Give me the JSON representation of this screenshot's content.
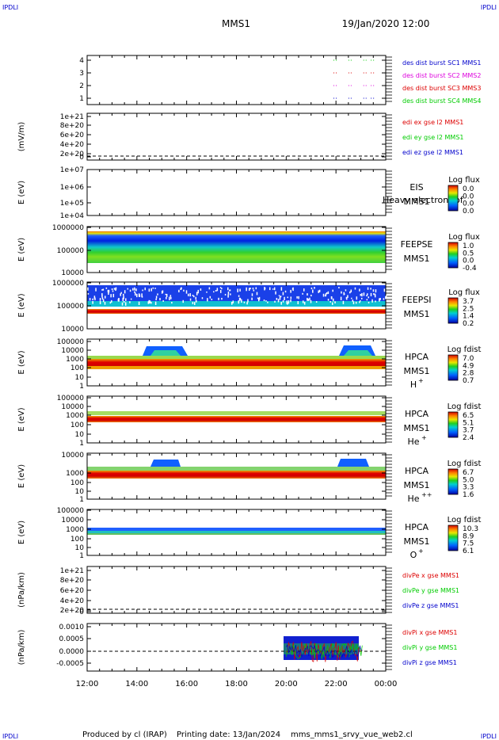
{
  "header": {
    "corner_tl": "IPDLI",
    "corner_tr": "IPDLI",
    "corner_bl": "IPDLI",
    "corner_br": "IPDLI",
    "spacecraft": "MMS1",
    "datetime": "19/Jan/2020 12:00"
  },
  "footer": {
    "produced_by": "Produced by cl (IRAP)",
    "printing_date": "Printing date: 13/Jan/2024",
    "filename": "mms_mms1_srvy_vue_web2.cl"
  },
  "colors": {
    "blue": "#0000cc",
    "magenta": "#dd00dd",
    "red": "#dd0000",
    "green": "#00cc00"
  },
  "chart_data": [
    {
      "type": "scatter",
      "id": "p1",
      "ticks": [
        "1",
        "2",
        "3",
        "4"
      ],
      "ylim": [
        0.5,
        4.5
      ],
      "legend": [
        {
          "label": "des dist burst SC1 MMS1",
          "color": "#0000cc"
        },
        {
          "label": "des dist burst SC2 MMS2",
          "color": "#dd00dd"
        },
        {
          "label": "des dist burst SC3 MMS3",
          "color": "#dd0000"
        },
        {
          "label": "des dist burst SC4 MMS4",
          "color": "#00cc00"
        }
      ],
      "events_hours": [
        21.9,
        22.5,
        23.1,
        23.4
      ]
    },
    {
      "type": "line",
      "id": "p2",
      "ylabel": "(mV/m)",
      "ticks": [
        "1e+21",
        "8e+20",
        "6e+20",
        "4e+20",
        "2e+20",
        "0"
      ],
      "legend": [
        {
          "label": "edi ex gse l2 MMS1",
          "color": "#dd0000"
        },
        {
          "label": "edi ey gse l2 MMS1",
          "color": "#00cc00"
        },
        {
          "label": "edi ez gse l2 MMS1",
          "color": "#0000cc"
        }
      ]
    },
    {
      "type": "heatmap",
      "id": "p3",
      "ylabel": "E (eV)",
      "ticks": [
        "1e+07",
        "1e+06",
        "1e+05",
        "1e+04"
      ],
      "side_top": "EIS",
      "side_bottom": "MMS1",
      "side_note": "Heavy electron tof",
      "cbar_title": "Log flux",
      "cbar_ticks": [
        "0.0",
        "0.0",
        "0.0",
        "0.0"
      ]
    },
    {
      "type": "heatmap",
      "id": "p4",
      "ylabel": "E (eV)",
      "ticks": [
        "1000000",
        "100000",
        "10000"
      ],
      "side_top": "FEEPSE",
      "side_bottom": "MMS1",
      "cbar_title": "Log flux",
      "cbar_ticks": [
        "1.0",
        "0.5",
        "0.0",
        "-0.4"
      ]
    },
    {
      "type": "heatmap",
      "id": "p5",
      "ylabel": "E (eV)",
      "ticks": [
        "1000000",
        "100000",
        "10000"
      ],
      "side_top": "FEEPSI",
      "side_bottom": "MMS1",
      "cbar_title": "Log flux",
      "cbar_ticks": [
        "3.7",
        "2.5",
        "1.4",
        "0.2"
      ]
    },
    {
      "type": "heatmap",
      "id": "p6",
      "ylabel": "E (eV)",
      "ticks": [
        "100000",
        "10000",
        "1000",
        "100",
        "10",
        "1"
      ],
      "side_top": "HPCA",
      "side_bottom": "MMS1",
      "species": "H",
      "species_sup": "+",
      "cbar_title": "Log fdist",
      "cbar_ticks": [
        "7.0",
        "4.9",
        "2.8",
        "0.7"
      ]
    },
    {
      "type": "heatmap",
      "id": "p7",
      "ylabel": "E (eV)",
      "ticks": [
        "100000",
        "10000",
        "1000",
        "100",
        "10",
        "1"
      ],
      "side_top": "HPCA",
      "side_bottom": "MMS1",
      "species": "He",
      "species_sup": "+",
      "cbar_title": "Log fdist",
      "cbar_ticks": [
        "6.5",
        "5.1",
        "3.7",
        "2.4"
      ]
    },
    {
      "type": "heatmap",
      "id": "p8",
      "ylabel": "E (eV)",
      "ticks": [
        "10000",
        "1000",
        "100",
        "10",
        "1"
      ],
      "side_top": "HPCA",
      "side_bottom": "MMS1",
      "species": "He",
      "species_sup": "++",
      "cbar_title": "Log fdist",
      "cbar_ticks": [
        "6.7",
        "5.0",
        "3.3",
        "1.6"
      ]
    },
    {
      "type": "heatmap",
      "id": "p9",
      "ylabel": "E (eV)",
      "ticks": [
        "100000",
        "10000",
        "1000",
        "100",
        "10",
        "1"
      ],
      "side_top": "HPCA",
      "side_bottom": "MMS1",
      "species": "O",
      "species_sup": "+",
      "cbar_title": "Log fdist",
      "cbar_ticks": [
        "10.3",
        "8.9",
        "7.5",
        "6.1"
      ]
    },
    {
      "type": "line",
      "id": "p10",
      "ylabel": "(nPa/km)",
      "ticks": [
        "1e+21",
        "8e+20",
        "6e+20",
        "4e+20",
        "2e+20",
        "0"
      ],
      "legend": [
        {
          "label": "divPe x gse MMS1",
          "color": "#dd0000"
        },
        {
          "label": "divPe y gse MMS1",
          "color": "#00cc00"
        },
        {
          "label": "divPe z gse MMS1",
          "color": "#0000cc"
        }
      ]
    },
    {
      "type": "line",
      "id": "p11",
      "ylabel": "(nPa/km)",
      "ticks": [
        "0.0010",
        "0.0005",
        "0.0000",
        "-0.0005"
      ],
      "ylim": [
        -0.00075,
        0.001
      ],
      "data_span_hours": [
        20.0,
        23.1
      ],
      "legend": [
        {
          "label": "divPi x gse MMS1",
          "color": "#dd0000"
        },
        {
          "label": "divPi y gse MMS1",
          "color": "#00cc00"
        },
        {
          "label": "divPi z gse MMS1",
          "color": "#0000cc"
        }
      ]
    }
  ],
  "x_axis": {
    "tick_labels": [
      "12:00",
      "14:00",
      "16:00",
      "18:00",
      "20:00",
      "22:00",
      "00:00"
    ],
    "range_hours": [
      12,
      24
    ]
  }
}
